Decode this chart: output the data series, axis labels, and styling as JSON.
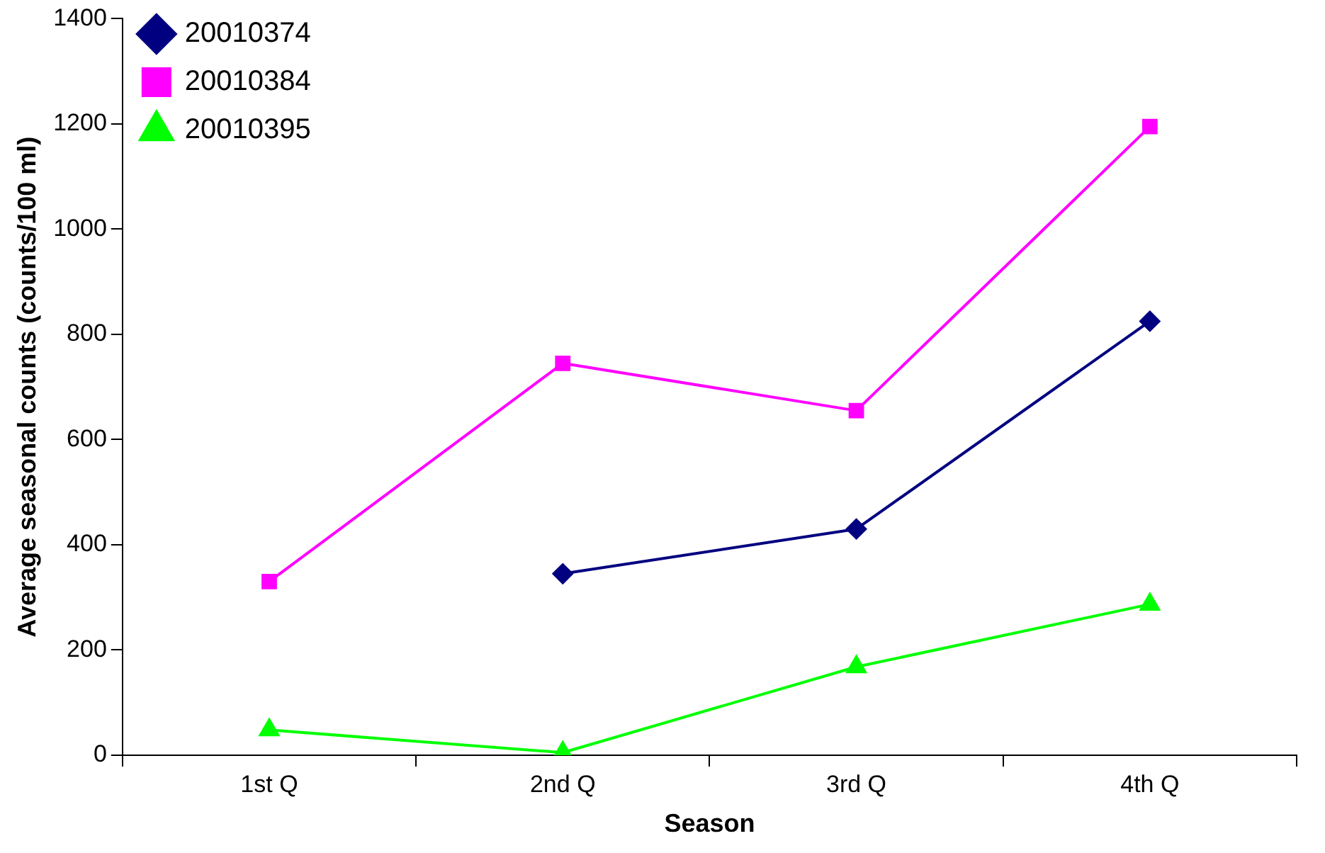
{
  "chart_data": {
    "type": "line",
    "xlabel": "Season",
    "ylabel": "Average seasonal counts (counts/100 ml)",
    "categories": [
      "1st Q",
      "2nd Q",
      "3rd Q",
      "4th Q"
    ],
    "series": [
      {
        "name": "20010374",
        "color": "#000080",
        "marker": "diamond",
        "values": [
          null,
          345,
          430,
          825
        ]
      },
      {
        "name": "20010384",
        "color": "#ff00ff",
        "marker": "square",
        "values": [
          330,
          745,
          655,
          1195
        ]
      },
      {
        "name": "20010395",
        "color": "#00ff00",
        "marker": "triangle",
        "values": [
          48,
          5,
          168,
          287
        ]
      }
    ],
    "ylim": [
      0,
      1400
    ],
    "yticks": [
      0,
      200,
      400,
      600,
      800,
      1000,
      1200,
      1400
    ],
    "grid": false,
    "legend": "top left"
  }
}
